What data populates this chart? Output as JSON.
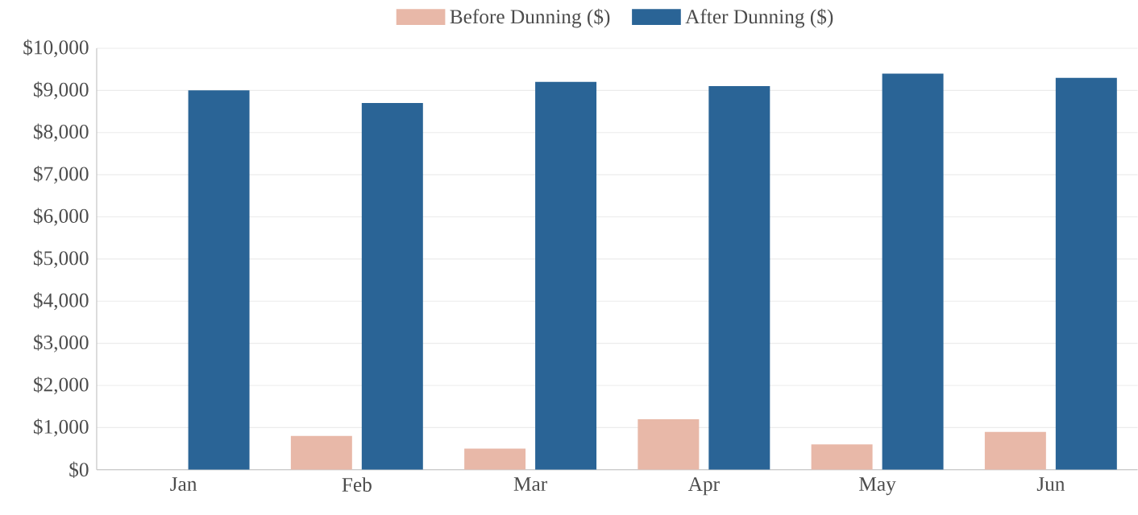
{
  "chart_data": {
    "type": "bar",
    "categories": [
      "Jan",
      "Feb",
      "Mar",
      "Apr",
      "May",
      "Jun"
    ],
    "series": [
      {
        "name": "Before Dunning ($)",
        "color": "#e8b8a8",
        "values": [
          0,
          800,
          500,
          1200,
          600,
          900
        ]
      },
      {
        "name": "After Dunning ($)",
        "color": "#2a6496",
        "values": [
          9000,
          8700,
          9200,
          9100,
          9400,
          9300
        ]
      }
    ],
    "ylim": [
      0,
      10000
    ],
    "yticks": [
      {
        "value": 0,
        "label": "$0"
      },
      {
        "value": 1000,
        "label": "$1,000"
      },
      {
        "value": 2000,
        "label": "$2,000"
      },
      {
        "value": 3000,
        "label": "$3,000"
      },
      {
        "value": 4000,
        "label": "$4,000"
      },
      {
        "value": 5000,
        "label": "$5,000"
      },
      {
        "value": 6000,
        "label": "$6,000"
      },
      {
        "value": 7000,
        "label": "$7,000"
      },
      {
        "value": 8000,
        "label": "$8,000"
      },
      {
        "value": 9000,
        "label": "$9,000"
      },
      {
        "value": 10000,
        "label": "$10,000"
      }
    ],
    "grid": "y",
    "legend": "top"
  }
}
